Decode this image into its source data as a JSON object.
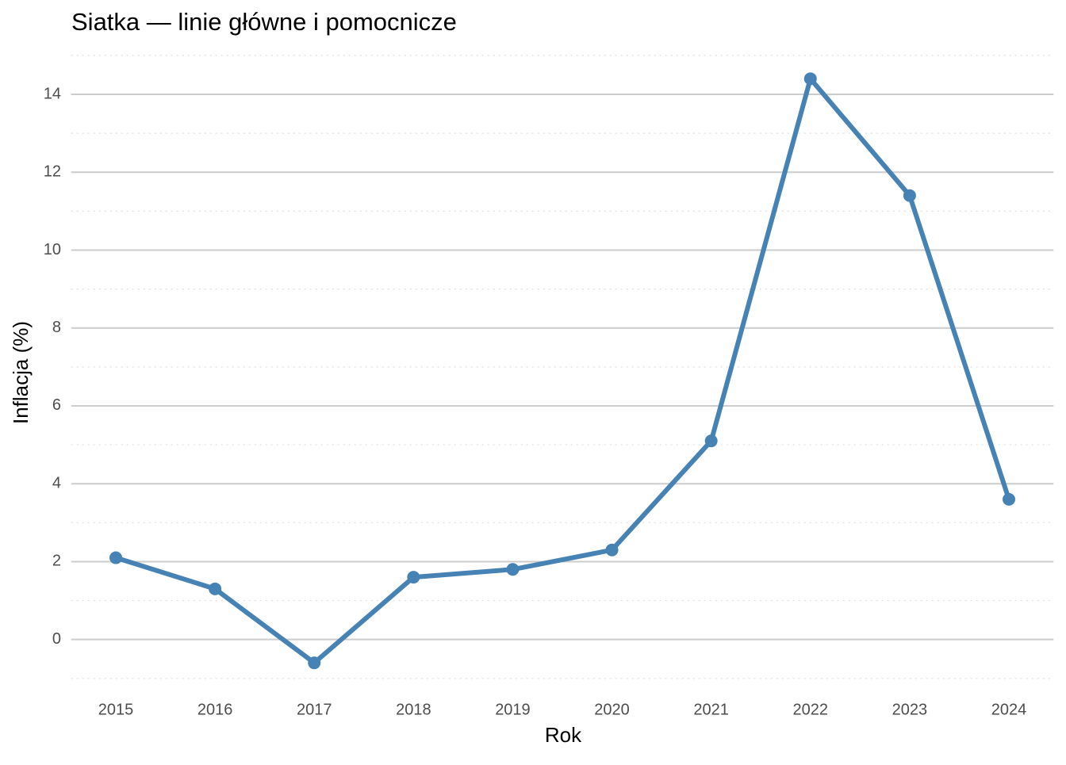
{
  "chart_data": {
    "type": "line",
    "title": "Siatka — linie główne i pomocnicze",
    "xlabel": "Rok",
    "ylabel": "Inflacja (%)",
    "x": [
      2015,
      2016,
      2017,
      2018,
      2019,
      2020,
      2021,
      2022,
      2023,
      2024
    ],
    "series": [
      {
        "name": "Inflacja",
        "color": "#4682b4",
        "values": [
          2.1,
          1.3,
          -0.6,
          1.6,
          1.8,
          2.3,
          5.1,
          14.4,
          11.4,
          3.6
        ]
      }
    ],
    "xlim": [
      2014.55,
      2024.45
    ],
    "xticks": [
      2015,
      2016,
      2017,
      2018,
      2019,
      2020,
      2021,
      2022,
      2023,
      2024
    ],
    "ylim": [
      -1.35,
      15.15
    ],
    "yticks": [
      0,
      2,
      4,
      6,
      8,
      10,
      12,
      14
    ],
    "yminorticks": [
      -1,
      1,
      3,
      5,
      7,
      9,
      11,
      13,
      15
    ],
    "grid": true,
    "minor_grid": true,
    "legend": false
  }
}
